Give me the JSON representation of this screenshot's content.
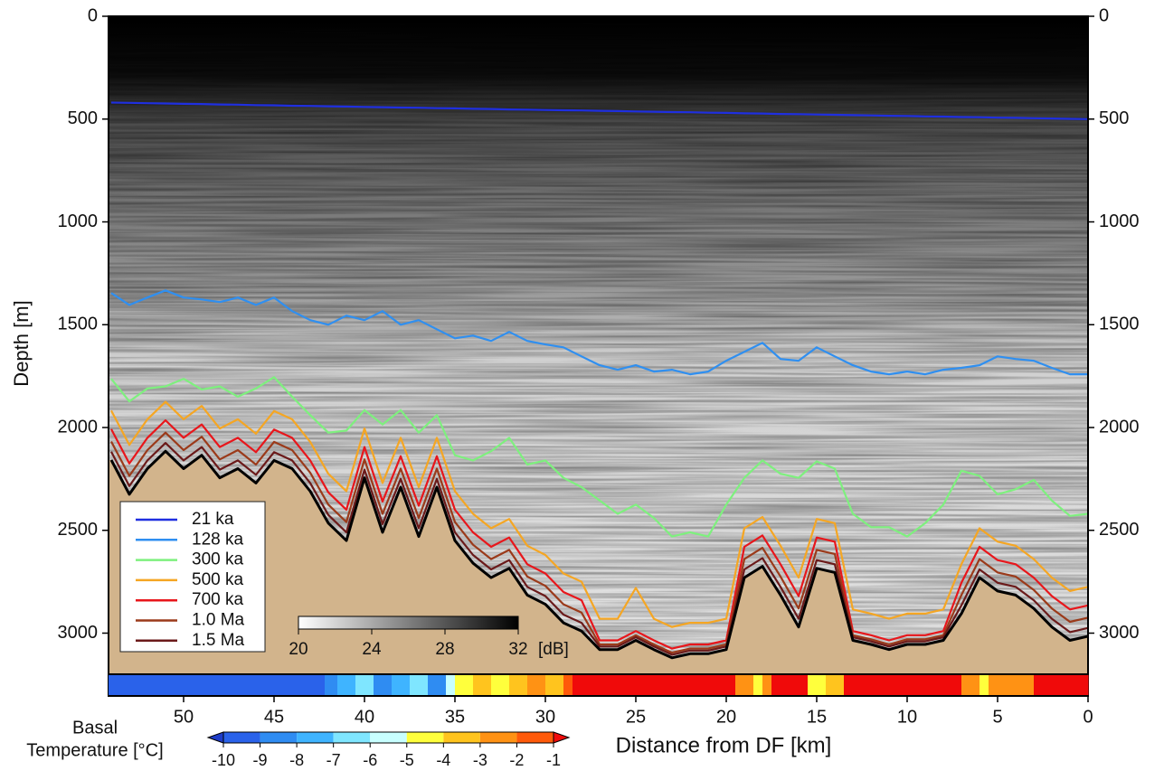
{
  "chart_data": {
    "type": "line",
    "xlabel": "Distance from DF [km]",
    "ylabel": "Depth [m]",
    "xlim": [
      54.15,
      0
    ],
    "ylim": [
      3200,
      0
    ],
    "xticks": [
      50,
      45,
      40,
      35,
      30,
      25,
      20,
      15,
      10,
      5,
      0
    ],
    "yticks": [
      0,
      500,
      1000,
      1500,
      2000,
      2500,
      3000
    ],
    "x": [
      54,
      53,
      52,
      51,
      50,
      49,
      48,
      47,
      46,
      45,
      44,
      43,
      42,
      41,
      40,
      39,
      38,
      37,
      36,
      35,
      34,
      33,
      32,
      31,
      30,
      29,
      28,
      27,
      26,
      25,
      24,
      23,
      22,
      21,
      20,
      19,
      18,
      17,
      16,
      15,
      14,
      13,
      12,
      11,
      10,
      9,
      8,
      7,
      6,
      5,
      4,
      3,
      2,
      1,
      0
    ],
    "series": [
      {
        "name": "21 ka",
        "color": "#1f2fe0",
        "values": [
          420,
          421,
          423,
          424,
          426,
          427,
          429,
          430,
          432,
          433,
          435,
          436,
          438,
          439,
          441,
          442,
          444,
          445,
          447,
          448,
          450,
          451,
          453,
          454,
          456,
          457,
          458,
          460,
          461,
          463,
          464,
          466,
          467,
          469,
          470,
          472,
          473,
          475,
          476,
          478,
          479,
          481,
          482,
          484,
          485,
          487,
          488,
          490,
          491,
          493,
          494,
          496,
          497,
          499,
          500
        ]
      },
      {
        "name": "128 ka",
        "color": "#2f8ff0",
        "values": [
          1346,
          1404,
          1368,
          1333,
          1368,
          1377,
          1390,
          1368,
          1404,
          1368,
          1434,
          1478,
          1500,
          1456,
          1478,
          1434,
          1500,
          1478,
          1522,
          1566,
          1553,
          1579,
          1535,
          1579,
          1596,
          1610,
          1654,
          1697,
          1719,
          1697,
          1728,
          1719,
          1741,
          1728,
          1675,
          1632,
          1588,
          1667,
          1675,
          1610,
          1654,
          1697,
          1728,
          1741,
          1728,
          1741,
          1719,
          1710,
          1697,
          1654,
          1667,
          1675,
          1710,
          1741,
          1741
        ]
      },
      {
        "name": "300 ka",
        "color": "#7ef07e",
        "values": [
          1763,
          1873,
          1810,
          1800,
          1763,
          1815,
          1800,
          1850,
          1810,
          1755,
          1850,
          1940,
          2025,
          2015,
          1915,
          1985,
          1915,
          2025,
          1940,
          2135,
          2160,
          2115,
          2050,
          2180,
          2160,
          2245,
          2290,
          2355,
          2420,
          2375,
          2440,
          2530,
          2510,
          2530,
          2375,
          2245,
          2160,
          2225,
          2245,
          2165,
          2200,
          2420,
          2485,
          2485,
          2530,
          2465,
          2375,
          2210,
          2235,
          2325,
          2300,
          2255,
          2355,
          2430,
          2420
        ]
      },
      {
        "name": "500 ka",
        "color": "#f5a623",
        "values": [
          1918,
          2085,
          1960,
          1875,
          1960,
          1895,
          2005,
          1960,
          2030,
          1920,
          1960,
          2070,
          2225,
          2310,
          2005,
          2270,
          2050,
          2290,
          2050,
          2310,
          2420,
          2490,
          2445,
          2575,
          2620,
          2710,
          2750,
          2930,
          2930,
          2780,
          2930,
          2970,
          2950,
          2950,
          2930,
          2490,
          2435,
          2575,
          2730,
          2445,
          2465,
          2885,
          2905,
          2930,
          2905,
          2905,
          2885,
          2665,
          2490,
          2555,
          2575,
          2640,
          2730,
          2795,
          2775
        ]
      },
      {
        "name": "700 ka",
        "color": "#e8161b",
        "values": [
          2008,
          2175,
          2050,
          1965,
          2050,
          1985,
          2095,
          2050,
          2120,
          2010,
          2050,
          2160,
          2315,
          2400,
          2095,
          2360,
          2140,
          2380,
          2140,
          2400,
          2510,
          2580,
          2535,
          2665,
          2710,
          2800,
          2840,
          3035,
          3035,
          2990,
          3035,
          3075,
          3055,
          3055,
          3035,
          2580,
          2525,
          2665,
          2820,
          2535,
          2555,
          2990,
          3010,
          3035,
          3010,
          3010,
          2990,
          2755,
          2580,
          2645,
          2665,
          2730,
          2820,
          2885,
          2865
        ]
      },
      {
        "name": "1.0 Ma",
        "color": "#9b3a1a",
        "values": [
          2068,
          2235,
          2110,
          2025,
          2110,
          2045,
          2155,
          2110,
          2180,
          2070,
          2110,
          2220,
          2375,
          2460,
          2155,
          2420,
          2200,
          2440,
          2200,
          2460,
          2570,
          2640,
          2595,
          2725,
          2770,
          2860,
          2900,
          3055,
          3055,
          3010,
          3055,
          3095,
          3075,
          3075,
          3055,
          2640,
          2585,
          2725,
          2880,
          2595,
          2615,
          3010,
          3030,
          3055,
          3030,
          3030,
          3010,
          2815,
          2640,
          2705,
          2725,
          2790,
          2880,
          2945,
          2925
        ]
      },
      {
        "name": "1.5 Ma",
        "color": "#6b1a1a",
        "values": [
          2118,
          2285,
          2160,
          2075,
          2160,
          2095,
          2205,
          2160,
          2230,
          2120,
          2160,
          2270,
          2425,
          2510,
          2205,
          2470,
          2250,
          2490,
          2250,
          2510,
          2620,
          2690,
          2645,
          2775,
          2820,
          2910,
          2950,
          3065,
          3065,
          3020,
          3065,
          3105,
          3085,
          3085,
          3065,
          2690,
          2635,
          2775,
          2930,
          2645,
          2665,
          3020,
          3040,
          3065,
          3040,
          3040,
          3020,
          2865,
          2690,
          2755,
          2775,
          2840,
          2930,
          2995,
          2975
        ]
      }
    ],
    "bedrock": {
      "color": "#000000",
      "fill": "#d2b48c",
      "values": [
        2158,
        2325,
        2200,
        2115,
        2200,
        2135,
        2245,
        2200,
        2270,
        2160,
        2200,
        2310,
        2465,
        2550,
        2245,
        2510,
        2290,
        2530,
        2290,
        2550,
        2660,
        2730,
        2685,
        2815,
        2860,
        2950,
        2990,
        3080,
        3080,
        3035,
        3080,
        3120,
        3100,
        3100,
        3080,
        2730,
        2675,
        2815,
        2970,
        2685,
        2705,
        3035,
        3055,
        3080,
        3055,
        3055,
        3035,
        2905,
        2730,
        2795,
        2815,
        2880,
        2970,
        3035,
        3015
      ]
    },
    "amplitude_colorbar": {
      "lim": [
        20,
        32
      ],
      "ticks": [
        20,
        24,
        28,
        32
      ],
      "unit": "[dB]"
    },
    "basal_temperature": {
      "label": [
        "Basal",
        "Temperature [°C]"
      ],
      "edges": [
        54.15,
        42.2,
        41.5,
        40.5,
        39.5,
        38.5,
        37.5,
        36.5,
        35.5,
        35,
        34,
        33,
        32,
        31,
        30,
        29,
        28.5,
        19.5,
        18.5,
        18,
        17.5,
        15.5,
        14.5,
        13.5,
        7,
        6,
        5.5,
        3,
        0
      ],
      "values": [
        -9.5,
        -8.5,
        -7.5,
        -6.5,
        -8.5,
        -7.5,
        -6.5,
        -8.5,
        -5.5,
        -4.5,
        -3.5,
        -4.5,
        -3.5,
        -2.5,
        -3.5,
        -1.5,
        -0.5,
        -2.5,
        -4.5,
        -2.5,
        -0.5,
        -4.5,
        -3.5,
        -0.5,
        -2.5,
        -4.5,
        -2.5,
        -0.5
      ],
      "ticks": [
        -10,
        -9,
        -8,
        -7,
        -6,
        -5,
        -4,
        -3,
        -2,
        -1
      ],
      "colors": [
        "#2a62ea",
        "#2f8cf2",
        "#3fb4ff",
        "#7fe6ff",
        "#c8ffff",
        "#ffff3c",
        "#ffc41e",
        "#ff9214",
        "#ff5a0a"
      ],
      "under_color": "#1e3cc8",
      "over_color": "#f00a0a"
    }
  }
}
